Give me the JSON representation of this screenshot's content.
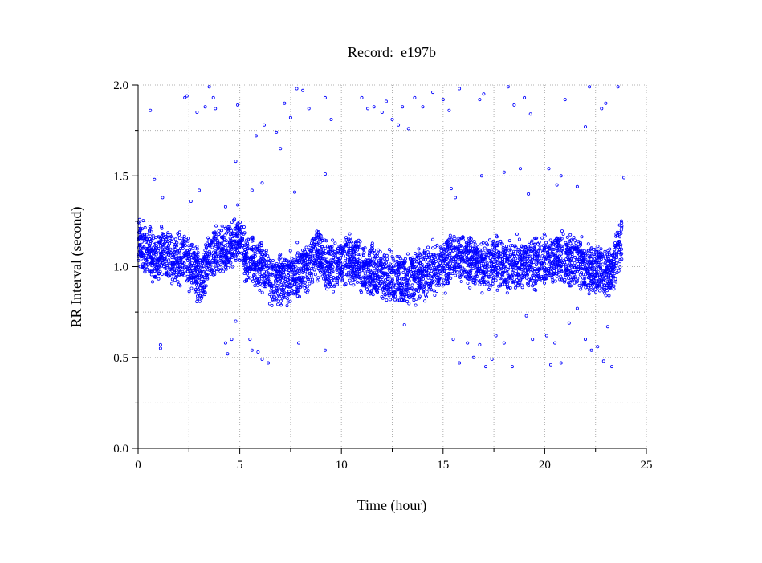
{
  "chart_data": {
    "type": "scatter",
    "title": "Record:  e197b",
    "xlabel": "Time (hour)",
    "ylabel": "RR Interval (second)",
    "xlim": [
      0,
      25
    ],
    "ylim": [
      0.0,
      2.0
    ],
    "xticks": [
      0,
      5,
      10,
      15,
      20,
      25
    ],
    "xtick_labels": [
      "0",
      "5",
      "10",
      "15",
      "20",
      "25"
    ],
    "yticks": [
      0.0,
      0.5,
      1.0,
      1.5,
      2.0
    ],
    "ytick_labels": [
      "0.0",
      "0.5",
      "1.0",
      "1.5",
      "2.0"
    ],
    "grid": true,
    "marker_color": "#0000ff",
    "band_trend": {
      "x": [
        0.0,
        0.3,
        0.8,
        1.2,
        1.8,
        2.3,
        2.8,
        3.1,
        3.5,
        4.0,
        4.5,
        4.9,
        5.3,
        5.8,
        6.3,
        6.7,
        7.2,
        7.8,
        8.3,
        8.9,
        9.3,
        9.8,
        10.3,
        10.8,
        11.3,
        11.8,
        12.3,
        12.8,
        13.2,
        13.6,
        14.0,
        14.5,
        15.0,
        15.5,
        16.0,
        16.5,
        17.0,
        17.5,
        18.0,
        18.5,
        19.0,
        19.5,
        20.0,
        20.5,
        21.0,
        21.5,
        22.0,
        22.5,
        23.0,
        23.4,
        23.8
      ],
      "y": [
        1.15,
        1.1,
        1.05,
        1.08,
        1.03,
        1.05,
        0.98,
        0.92,
        1.05,
        1.08,
        1.12,
        1.15,
        1.05,
        1.02,
        0.98,
        0.9,
        0.93,
        0.97,
        1.0,
        1.08,
        1.0,
        1.02,
        1.05,
        1.02,
        0.98,
        0.97,
        0.95,
        0.93,
        0.92,
        0.95,
        0.97,
        1.0,
        1.0,
        1.05,
        1.05,
        1.02,
        1.0,
        1.03,
        1.0,
        1.02,
        1.0,
        1.02,
        1.03,
        1.05,
        1.05,
        1.03,
        1.0,
        0.98,
        0.95,
        1.0,
        1.15
      ]
    },
    "outliers_upper": {
      "x": [
        0.6,
        2.3,
        2.4,
        2.9,
        3.3,
        3.5,
        3.7,
        3.8,
        4.9,
        5.8,
        6.2,
        6.8,
        7.0,
        7.2,
        7.5,
        7.8,
        8.1,
        8.4,
        9.2,
        9.5,
        11.0,
        11.3,
        11.6,
        12.0,
        12.2,
        12.5,
        12.8,
        13.0,
        13.3,
        13.6,
        14.0,
        14.5,
        15.0,
        15.3,
        15.8,
        16.8,
        17.0,
        18.2,
        18.5,
        19.0,
        19.3,
        21.0,
        22.0,
        22.2,
        22.8,
        23.0,
        23.6
      ],
      "y": [
        1.86,
        1.93,
        1.94,
        1.85,
        1.88,
        1.99,
        1.93,
        1.87,
        1.89,
        1.72,
        1.78,
        1.74,
        1.65,
        1.9,
        1.82,
        1.98,
        1.97,
        1.87,
        1.93,
        1.81,
        1.93,
        1.87,
        1.88,
        1.85,
        1.91,
        1.81,
        1.78,
        1.88,
        1.76,
        1.93,
        1.88,
        1.96,
        1.92,
        1.86,
        1.98,
        1.92,
        1.95,
        1.99,
        1.89,
        1.93,
        1.84,
        1.92,
        1.77,
        1.99,
        1.87,
        1.9,
        1.99
      ]
    },
    "outliers_lower": {
      "x": [
        1.1,
        1.1,
        4.3,
        4.4,
        4.6,
        4.8,
        5.5,
        5.6,
        5.9,
        6.1,
        6.4,
        7.9,
        9.2,
        13.1,
        15.5,
        15.8,
        16.2,
        16.5,
        16.8,
        17.1,
        17.4,
        17.6,
        18.0,
        18.4,
        19.1,
        19.4,
        20.1,
        20.3,
        20.5,
        20.8,
        21.2,
        21.6,
        22.0,
        22.3,
        22.6,
        22.9,
        23.1,
        23.3
      ],
      "y": [
        0.55,
        0.57,
        0.58,
        0.52,
        0.6,
        0.7,
        0.6,
        0.54,
        0.53,
        0.49,
        0.47,
        0.58,
        0.54,
        0.68,
        0.6,
        0.47,
        0.58,
        0.5,
        0.57,
        0.45,
        0.49,
        0.62,
        0.58,
        0.45,
        0.73,
        0.6,
        0.62,
        0.46,
        0.58,
        0.47,
        0.69,
        0.77,
        0.6,
        0.54,
        0.56,
        0.48,
        0.67,
        0.45
      ]
    },
    "outliers_mid": {
      "x": [
        0.8,
        1.2,
        2.6,
        3.0,
        4.3,
        4.8,
        4.9,
        5.6,
        6.1,
        7.7,
        9.2,
        15.4,
        15.6,
        16.9,
        18.0,
        18.8,
        19.2,
        20.2,
        20.6,
        20.8,
        21.6,
        23.9
      ],
      "y": [
        1.48,
        1.38,
        1.36,
        1.42,
        1.33,
        1.58,
        1.34,
        1.42,
        1.46,
        1.41,
        1.51,
        1.43,
        1.38,
        1.5,
        1.52,
        1.54,
        1.4,
        1.54,
        1.45,
        1.5,
        1.44,
        1.49
      ]
    }
  }
}
